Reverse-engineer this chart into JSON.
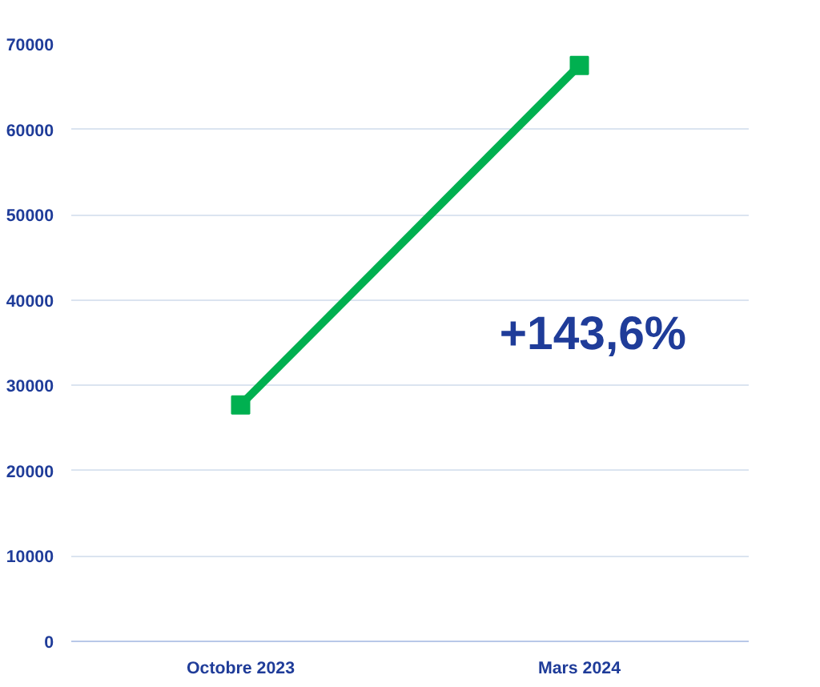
{
  "chart_data": {
    "type": "line",
    "categories": [
      "Octobre 2023",
      "Mars 2024"
    ],
    "series": [
      {
        "color": "#00b050",
        "values": [
          27700,
          67500
        ]
      }
    ],
    "ylim": [
      0,
      70000
    ],
    "yticks": [
      0,
      10000,
      20000,
      30000,
      40000,
      50000,
      60000,
      70000
    ],
    "grid": "y",
    "marker": "square",
    "line_style": "solid",
    "annotations": [
      "+143,6%"
    ]
  }
}
